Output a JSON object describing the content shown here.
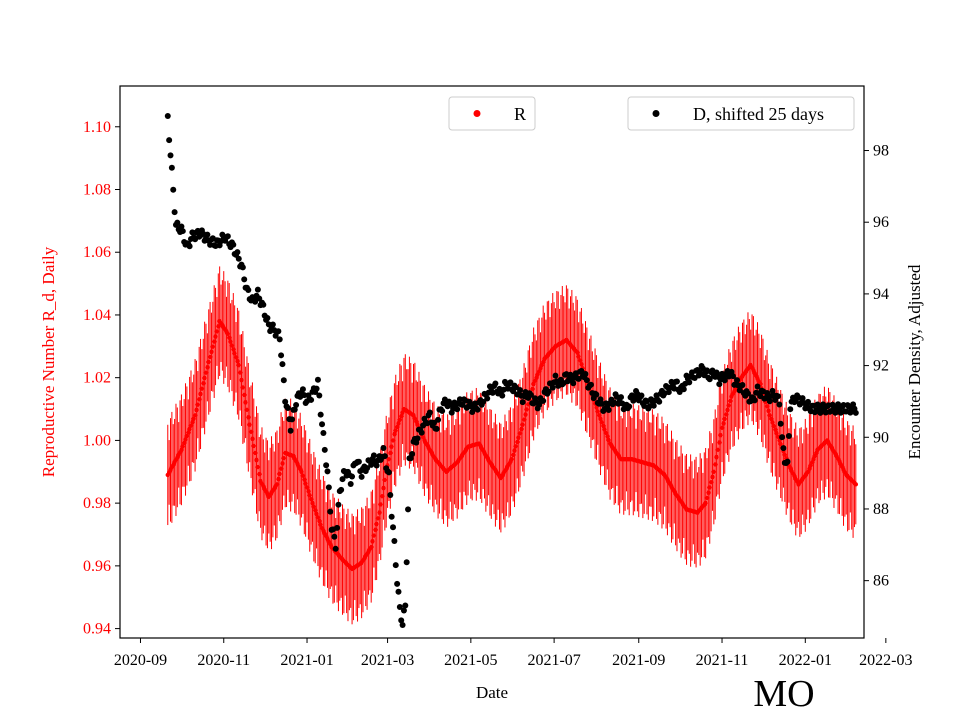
{
  "chart_data": {
    "type": "scatter",
    "xlabel": "Date",
    "ylabel_left": "Reproductive Number R_d, Daily",
    "ylabel_right": "Encounter Density, Adjusted",
    "state_label": "MO",
    "x_range_days": [
      -15,
      530
    ],
    "x_start_date": "2020-09-01",
    "x_ticks": [
      {
        "day": 0,
        "label": "2020-09"
      },
      {
        "day": 61,
        "label": "2020-11"
      },
      {
        "day": 122,
        "label": "2021-01"
      },
      {
        "day": 181,
        "label": "2021-03"
      },
      {
        "day": 242,
        "label": "2021-05"
      },
      {
        "day": 303,
        "label": "2021-07"
      },
      {
        "day": 365,
        "label": "2021-09"
      },
      {
        "day": 426,
        "label": "2021-11"
      },
      {
        "day": 487,
        "label": "2022-01"
      },
      {
        "day": 546,
        "label": "2022-03"
      }
    ],
    "y_left_range": [
      0.937,
      1.113
    ],
    "y_left_ticks": [
      "0.94",
      "0.96",
      "0.98",
      "1.00",
      "1.02",
      "1.04",
      "1.06",
      "1.08",
      "1.10"
    ],
    "y_right_range": [
      84.4,
      99.8
    ],
    "y_right_ticks": [
      "86",
      "88",
      "90",
      "92",
      "94",
      "96",
      "98"
    ],
    "colors": {
      "r_series": "#ff0000",
      "d_series": "#000000",
      "axis_left": "#ff0000"
    },
    "legend": {
      "r": {
        "label": "R",
        "placement": "top-center"
      },
      "d": {
        "label": "D, shifted 25 days",
        "placement": "top-right"
      }
    },
    "series": [
      {
        "name": "R",
        "axis": "left",
        "err_spread": 0.018,
        "points": [
          [
            20,
            0.989
          ],
          [
            30,
            0.997
          ],
          [
            40,
            1.008
          ],
          [
            50,
            1.025
          ],
          [
            58,
            1.038
          ],
          [
            64,
            1.034
          ],
          [
            72,
            1.024
          ],
          [
            80,
            1.005
          ],
          [
            88,
            0.987
          ],
          [
            94,
            0.982
          ],
          [
            100,
            0.986
          ],
          [
            106,
            0.996
          ],
          [
            112,
            0.995
          ],
          [
            118,
            0.99
          ],
          [
            126,
            0.98
          ],
          [
            133,
            0.972
          ],
          [
            140,
            0.966
          ],
          [
            148,
            0.962
          ],
          [
            155,
            0.959
          ],
          [
            162,
            0.961
          ],
          [
            169,
            0.966
          ],
          [
            175,
            0.977
          ],
          [
            180,
            0.99
          ],
          [
            186,
            1.002
          ],
          [
            193,
            1.01
          ],
          [
            200,
            1.008
          ],
          [
            208,
            1.0
          ],
          [
            216,
            0.994
          ],
          [
            224,
            0.99
          ],
          [
            232,
            0.993
          ],
          [
            240,
            0.998
          ],
          [
            248,
            0.999
          ],
          [
            256,
            0.993
          ],
          [
            264,
            0.988
          ],
          [
            272,
            0.994
          ],
          [
            280,
            1.005
          ],
          [
            288,
            1.018
          ],
          [
            296,
            1.026
          ],
          [
            304,
            1.03
          ],
          [
            312,
            1.032
          ],
          [
            320,
            1.028
          ],
          [
            328,
            1.018
          ],
          [
            336,
            1.008
          ],
          [
            344,
            0.999
          ],
          [
            352,
            0.994
          ],
          [
            360,
            0.994
          ],
          [
            368,
            0.993
          ],
          [
            376,
            0.992
          ],
          [
            384,
            0.989
          ],
          [
            392,
            0.983
          ],
          [
            400,
            0.978
          ],
          [
            408,
            0.977
          ],
          [
            414,
            0.98
          ],
          [
            420,
            0.99
          ],
          [
            426,
            1.004
          ],
          [
            433,
            1.014
          ],
          [
            440,
            1.02
          ],
          [
            447,
            1.024
          ],
          [
            454,
            1.018
          ],
          [
            461,
            1.008
          ],
          [
            468,
            1.0
          ],
          [
            475,
            0.992
          ],
          [
            482,
            0.986
          ],
          [
            489,
            0.99
          ],
          [
            496,
            0.997
          ],
          [
            503,
            1.0
          ],
          [
            510,
            0.995
          ],
          [
            517,
            0.989
          ],
          [
            524,
            0.986
          ]
        ]
      },
      {
        "name": "D, shifted 25 days",
        "axis": "right",
        "points": [
          [
            20,
            98.9
          ],
          [
            22,
            97.9
          ],
          [
            24,
            96.9
          ],
          [
            26,
            95.9
          ],
          [
            30,
            95.8
          ],
          [
            34,
            95.3
          ],
          [
            38,
            95.6
          ],
          [
            44,
            95.7
          ],
          [
            50,
            95.5
          ],
          [
            56,
            95.4
          ],
          [
            62,
            95.6
          ],
          [
            68,
            95.3
          ],
          [
            74,
            94.8
          ],
          [
            78,
            94.1
          ],
          [
            82,
            93.8
          ],
          [
            86,
            94.0
          ],
          [
            90,
            93.6
          ],
          [
            94,
            93.1
          ],
          [
            98,
            93.0
          ],
          [
            102,
            92.8
          ],
          [
            106,
            91.1
          ],
          [
            110,
            90.3
          ],
          [
            114,
            91.0
          ],
          [
            118,
            91.3
          ],
          [
            122,
            91.0
          ],
          [
            126,
            91.2
          ],
          [
            130,
            91.5
          ],
          [
            134,
            90.0
          ],
          [
            137,
            89.0
          ],
          [
            140,
            87.5
          ],
          [
            143,
            87.0
          ],
          [
            146,
            88.5
          ],
          [
            150,
            89.1
          ],
          [
            154,
            88.8
          ],
          [
            158,
            89.4
          ],
          [
            162,
            89.0
          ],
          [
            166,
            89.2
          ],
          [
            170,
            89.4
          ],
          [
            174,
            89.3
          ],
          [
            178,
            89.6
          ],
          [
            182,
            88.9
          ],
          [
            184,
            87.9
          ],
          [
            186,
            87.0
          ],
          [
            188,
            86.0
          ],
          [
            190,
            85.2
          ],
          [
            192,
            84.8
          ],
          [
            194,
            85.3
          ],
          [
            197,
            89.3
          ],
          [
            200,
            89.8
          ],
          [
            204,
            90.1
          ],
          [
            208,
            90.4
          ],
          [
            212,
            90.6
          ],
          [
            216,
            90.2
          ],
          [
            220,
            90.8
          ],
          [
            224,
            91.0
          ],
          [
            228,
            90.8
          ],
          [
            232,
            90.9
          ],
          [
            236,
            91.0
          ],
          [
            240,
            90.9
          ],
          [
            244,
            90.8
          ],
          [
            248,
            90.9
          ],
          [
            252,
            91.1
          ],
          [
            256,
            91.3
          ],
          [
            260,
            91.4
          ],
          [
            264,
            91.2
          ],
          [
            268,
            91.5
          ],
          [
            272,
            91.4
          ],
          [
            276,
            91.3
          ],
          [
            280,
            91.1
          ],
          [
            284,
            91.2
          ],
          [
            288,
            91.0
          ],
          [
            292,
            90.9
          ],
          [
            296,
            91.2
          ],
          [
            300,
            91.4
          ],
          [
            304,
            91.6
          ],
          [
            308,
            91.5
          ],
          [
            312,
            91.7
          ],
          [
            316,
            91.6
          ],
          [
            320,
            91.7
          ],
          [
            324,
            91.8
          ],
          [
            328,
            91.5
          ],
          [
            332,
            91.2
          ],
          [
            336,
            91.0
          ],
          [
            340,
            90.8
          ],
          [
            344,
            90.9
          ],
          [
            348,
            91.1
          ],
          [
            352,
            91.0
          ],
          [
            356,
            90.8
          ],
          [
            360,
            91.1
          ],
          [
            364,
            91.2
          ],
          [
            368,
            91.0
          ],
          [
            372,
            90.9
          ],
          [
            376,
            91.0
          ],
          [
            380,
            91.1
          ],
          [
            384,
            91.3
          ],
          [
            388,
            91.4
          ],
          [
            392,
            91.5
          ],
          [
            396,
            91.3
          ],
          [
            400,
            91.6
          ],
          [
            404,
            91.7
          ],
          [
            408,
            91.8
          ],
          [
            412,
            91.9
          ],
          [
            416,
            91.7
          ],
          [
            420,
            91.8
          ],
          [
            424,
            91.6
          ],
          [
            428,
            91.7
          ],
          [
            432,
            91.8
          ],
          [
            436,
            91.5
          ],
          [
            440,
            91.4
          ],
          [
            444,
            91.2
          ],
          [
            448,
            91.0
          ],
          [
            452,
            91.3
          ],
          [
            456,
            91.2
          ],
          [
            460,
            91.1
          ],
          [
            464,
            91.2
          ],
          [
            468,
            91.0
          ],
          [
            470,
            89.9
          ],
          [
            472,
            89.4
          ],
          [
            474,
            89.2
          ],
          [
            476,
            90.9
          ],
          [
            480,
            91.1
          ],
          [
            484,
            91.0
          ],
          [
            488,
            90.9
          ],
          [
            492,
            90.8
          ],
          [
            496,
            90.8
          ],
          [
            500,
            90.8
          ],
          [
            504,
            90.8
          ],
          [
            508,
            90.8
          ],
          [
            512,
            90.8
          ],
          [
            516,
            90.8
          ],
          [
            520,
            90.8
          ],
          [
            524,
            90.8
          ]
        ]
      }
    ]
  }
}
